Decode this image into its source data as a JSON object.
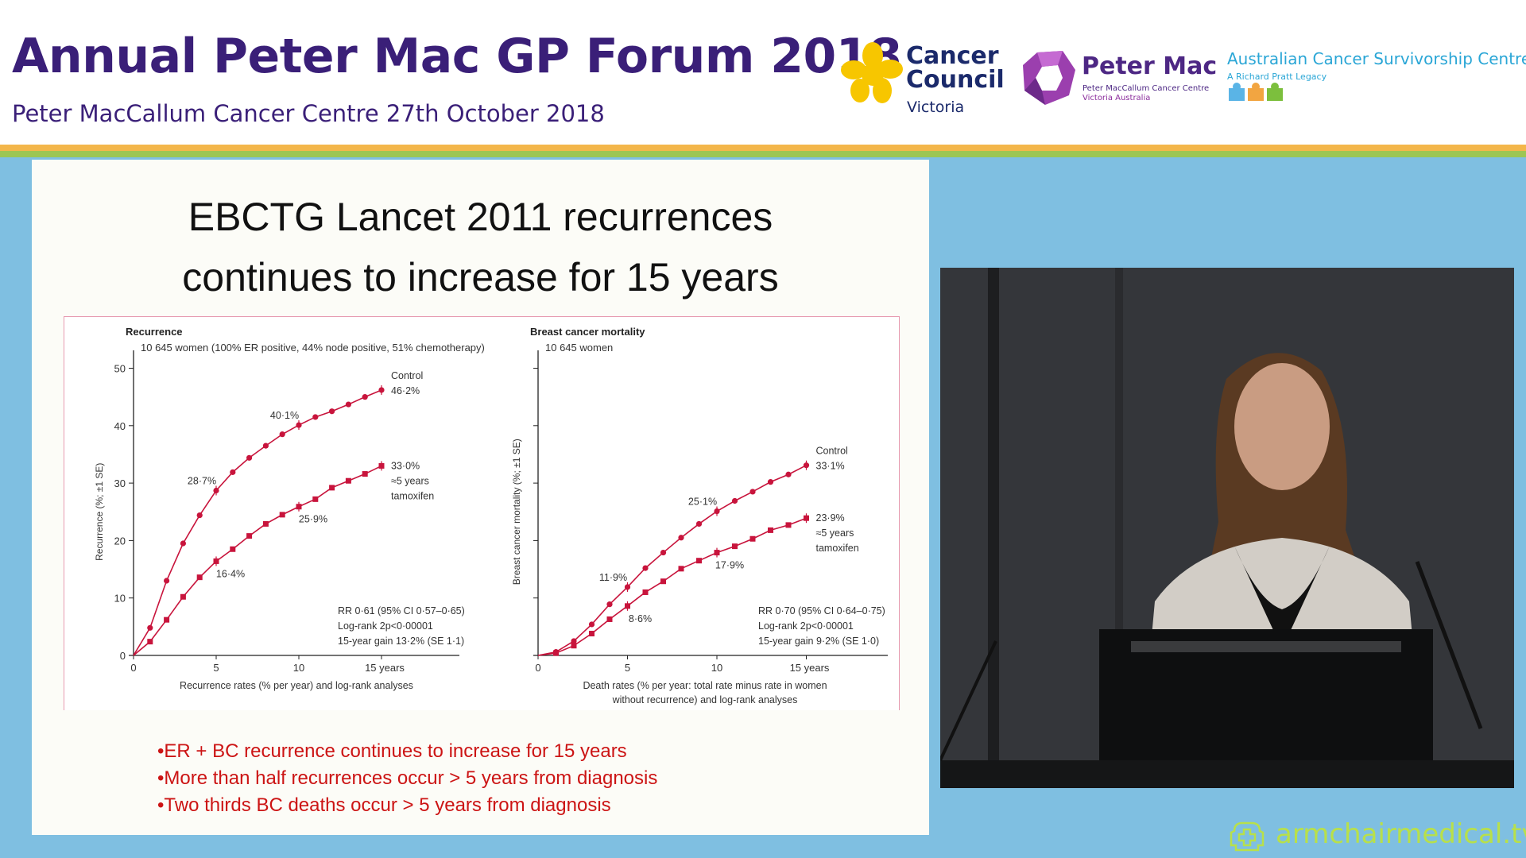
{
  "header": {
    "title": "Annual Peter Mac GP Forum 2018",
    "subtitle": "Peter MacCallum Cancer Centre 27th October 2018",
    "logos": {
      "cancer_council": {
        "line1": "Cancer",
        "line2": "Council",
        "line3": "Victoria"
      },
      "peter_mac": {
        "name": "Peter Mac",
        "sub1": "Peter MacCallum Cancer Centre",
        "sub2": "Victoria Australia"
      },
      "acsc": {
        "name": "Australian Cancer Survivorship Centre",
        "sub": "A Richard Pratt Legacy"
      }
    }
  },
  "slide": {
    "title_line1": "EBCTG Lancet 2011 recurrences",
    "title_line2": "continues to increase for 15 years",
    "bullets": [
      "•ER + BC recurrence continues to increase for 15 years",
      "•More than half recurrences occur > 5 years from diagnosis",
      "•Two thirds BC deaths occur > 5 years from diagnosis"
    ]
  },
  "chart_data": [
    {
      "type": "line",
      "title": "Recurrence",
      "subtitle": "10 645 women (100% ER positive, 44% node positive, 51% chemotherapy)",
      "ylabel": "Recurrence (%; ±1 SE)",
      "xlabel": "Recurrence rates (% per year) and log-rank analyses",
      "x_ticks": [
        "0",
        "5",
        "10",
        "15 years"
      ],
      "y_ticks": [
        "0",
        "10",
        "20",
        "30",
        "40",
        "50"
      ],
      "xlim": [
        0,
        19.6
      ],
      "ylim": [
        0,
        50
      ],
      "x": [
        0,
        1,
        2,
        3,
        4,
        5,
        6,
        7,
        8,
        9,
        10,
        11,
        12,
        13,
        14,
        15
      ],
      "series": [
        {
          "name": "Control",
          "values": [
            0,
            4.8,
            13.0,
            19.5,
            24.4,
            28.7,
            31.9,
            34.4,
            36.5,
            38.5,
            40.1,
            41.5,
            42.5,
            43.7,
            45.0,
            46.2
          ]
        },
        {
          "name": "≈5 years tamoxifen",
          "values": [
            0,
            2.4,
            6.2,
            10.2,
            13.6,
            16.4,
            18.5,
            20.8,
            22.9,
            24.5,
            25.9,
            27.2,
            29.2,
            30.4,
            31.6,
            33.0
          ]
        }
      ],
      "annotations": [
        {
          "text": "28·7%",
          "x": 5,
          "y": 28.7
        },
        {
          "text": "40·1%",
          "x": 10,
          "y": 40.1
        },
        {
          "text": "16·4%",
          "x": 5,
          "y": 16.4
        },
        {
          "text": "25·9%",
          "x": 10,
          "y": 25.9
        }
      ],
      "end_labels": {
        "control": [
          "Control",
          "46·2%"
        ],
        "tamoxifen": [
          "33·0%",
          "≈5 years",
          "tamoxifen"
        ]
      },
      "stats": [
        "RR 0·61 (95% CI 0·57–0·65)",
        "Log-rank 2p<0·00001",
        "15-year gain 13·2% (SE 1·1)"
      ],
      "color": "#c8143c"
    },
    {
      "type": "line",
      "title": "Breast cancer mortality",
      "subtitle": "10 645 women",
      "ylabel": "Breast cancer mortality (%; ±1 SE)",
      "xlabel_line1": "Death rates (% per year: total rate minus rate in women",
      "xlabel_line2": "without recurrence) and log-rank analyses",
      "x_ticks": [
        "0",
        "5",
        "10",
        "15 years"
      ],
      "xlim": [
        0,
        19.4
      ],
      "ylim": [
        0,
        50
      ],
      "x": [
        0,
        1,
        2,
        3,
        4,
        5,
        6,
        7,
        8,
        9,
        10,
        11,
        12,
        13,
        14,
        15
      ],
      "series": [
        {
          "name": "Control",
          "values": [
            0,
            0.6,
            2.5,
            5.4,
            8.9,
            11.9,
            15.2,
            17.9,
            20.5,
            22.9,
            25.1,
            26.9,
            28.5,
            30.2,
            31.5,
            33.1
          ]
        },
        {
          "name": "≈5 years tamoxifen",
          "values": [
            0,
            0.4,
            1.7,
            3.8,
            6.3,
            8.6,
            11.0,
            12.9,
            15.1,
            16.5,
            17.9,
            19.0,
            20.3,
            21.8,
            22.7,
            23.9
          ]
        }
      ],
      "annotations": [
        {
          "text": "11·9%",
          "x": 5,
          "y": 11.9
        },
        {
          "text": "25·1%",
          "x": 10,
          "y": 25.1
        },
        {
          "text": "8·6%",
          "x": 5,
          "y": 8.6
        },
        {
          "text": "17·9%",
          "x": 10,
          "y": 17.9
        }
      ],
      "end_labels": {
        "control": [
          "Control",
          "33·1%"
        ],
        "tamoxifen": [
          "23·9%",
          "≈5 years",
          "tamoxifen"
        ]
      },
      "stats": [
        "RR 0·70 (95% CI 0·64–0·75)",
        "Log-rank 2p<0·00001",
        "15-year gain 9·2% (SE 1·0)"
      ],
      "color": "#c8143c"
    }
  ],
  "watermark": "armchairmedical.tv",
  "colors": {
    "title": "#3a1f78",
    "background": "#7fbfe1",
    "bullets": "#cc1414",
    "series": "#c8143c",
    "watermark": "#b8e04a"
  }
}
